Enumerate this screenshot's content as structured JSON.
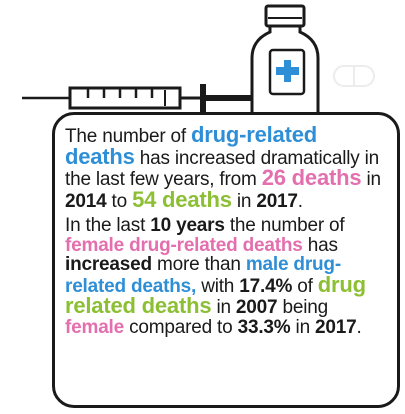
{
  "icons": {
    "syringe": "syringe-icon",
    "bottle": "medicine-bottle-icon",
    "pill": "pill-icon"
  },
  "colors": {
    "blue": "#2f8fd6",
    "pink": "#e36fae",
    "green": "#8cbf34",
    "text": "#1a1a1a"
  },
  "p1": {
    "t1": "The number of ",
    "h1": "drug-related deaths",
    "t2": " has increased dramatically in the last few years, from ",
    "h2": "26 deaths",
    "t3": " in ",
    "b1": "2014",
    "t4": " to ",
    "h3": "54 deaths",
    "t5": " in ",
    "b2": "2017",
    "t6": "."
  },
  "p2": {
    "t1": "In the last ",
    "b1": "10 years",
    "t2": " the number of ",
    "h1": "female drug-related deaths",
    "t3": " has ",
    "b2": "increased",
    "t4": " more than ",
    "h2": "male drug-related deaths,",
    "t5": " with ",
    "b3": "17.4%",
    "t6": " of ",
    "h3": "drug related deaths",
    "t7": " in ",
    "b4": "2007",
    "t8": " being ",
    "h4": "female",
    "t9": " compared to ",
    "b5": "33.3%",
    "t10": " in ",
    "b6": "2017",
    "t11": "."
  }
}
